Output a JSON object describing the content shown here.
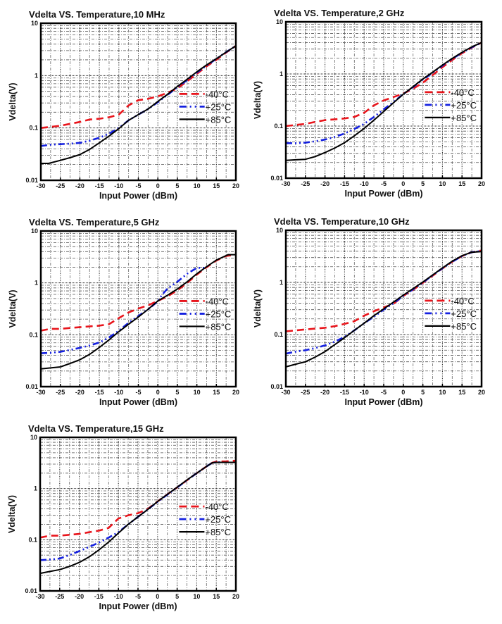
{
  "chart_data": [
    {
      "type": "line",
      "title": "Vdelta VS. Temperature,10 MHz",
      "xlabel": "Input Power (dBm)",
      "ylabel": "Vdelta(V)",
      "xlim": [
        -30,
        20
      ],
      "ylim": [
        0.01,
        10
      ],
      "yscale": "log",
      "x_ticks": [
        "-30",
        "-25",
        "-20",
        "-15",
        "-10",
        "-5",
        "0",
        "5",
        "10",
        "15",
        "20"
      ],
      "y_ticks": [
        "0.01",
        "0.1",
        "1",
        "10"
      ],
      "grid": true,
      "legend_position": "center-right",
      "series": [
        {
          "name": "-40°C",
          "color": "#e8141b",
          "style": "dashed",
          "x": [
            -30,
            -27.5,
            -25,
            -22.5,
            -20,
            -17.5,
            -15,
            -12.5,
            -10,
            -7.5,
            -5,
            -2.5,
            0,
            2.5,
            5,
            7.5,
            10,
            12.5,
            15,
            17.5,
            20
          ],
          "y": [
            0.1,
            0.105,
            0.11,
            0.12,
            0.13,
            0.145,
            0.15,
            0.16,
            0.18,
            0.27,
            0.34,
            0.36,
            0.4,
            0.47,
            0.57,
            0.78,
            1.08,
            1.5,
            2.0,
            2.75,
            3.7
          ]
        },
        {
          "name": "+25°C",
          "color": "#1420e0",
          "style": "dashdot",
          "x": [
            -30,
            -27.5,
            -25,
            -22.5,
            -20,
            -17.5,
            -15,
            -12.5,
            -10,
            -7.5,
            -5,
            -2.5,
            0,
            2.5,
            5,
            7.5,
            10,
            12.5,
            15,
            17.5,
            20
          ],
          "y": [
            0.045,
            0.048,
            0.049,
            0.05,
            0.052,
            0.057,
            0.065,
            0.078,
            0.1,
            0.14,
            0.18,
            0.23,
            0.31,
            0.43,
            0.6,
            0.82,
            1.15,
            1.55,
            2.1,
            2.8,
            3.7
          ]
        },
        {
          "name": "+85°C",
          "color": "#000000",
          "style": "solid",
          "x": [
            -30,
            -28,
            -25,
            -22.5,
            -20,
            -17.5,
            -15,
            -12.5,
            -10,
            -7.5,
            -5,
            -2.5,
            0,
            2.5,
            5,
            7.5,
            10,
            12.5,
            15,
            17.5,
            20
          ],
          "y": [
            0.021,
            0.021,
            0.024,
            0.027,
            0.031,
            0.039,
            0.052,
            0.07,
            0.097,
            0.14,
            0.18,
            0.23,
            0.32,
            0.44,
            0.62,
            0.85,
            1.18,
            1.6,
            2.1,
            2.8,
            3.7
          ]
        }
      ]
    },
    {
      "type": "line",
      "title": "Vdelta VS. Temperature,2 GHz",
      "xlabel": "Input Power (dBm)",
      "ylabel": "Vdelta(V)",
      "xlim": [
        -30,
        20
      ],
      "ylim": [
        0.01,
        10
      ],
      "yscale": "log",
      "x_ticks": [
        "-30",
        "-25",
        "-20",
        "-15",
        "-10",
        "-5",
        "0",
        "5",
        "10",
        "15",
        "20"
      ],
      "y_ticks": [
        "0.01",
        "0.1",
        "1",
        "10"
      ],
      "grid": true,
      "legend_position": "center-right",
      "series": [
        {
          "name": "-40°C",
          "color": "#e8141b",
          "style": "dashed",
          "x": [
            -30,
            -27.5,
            -25,
            -22.5,
            -20,
            -17.5,
            -15,
            -12.5,
            -10,
            -7.5,
            -5,
            -2.5,
            0,
            2.5,
            5,
            7.5,
            10,
            12.5,
            15,
            17.5,
            20
          ],
          "y": [
            0.1,
            0.105,
            0.11,
            0.12,
            0.13,
            0.135,
            0.14,
            0.15,
            0.18,
            0.25,
            0.31,
            0.36,
            0.42,
            0.52,
            0.68,
            0.95,
            1.35,
            1.85,
            2.5,
            3.2,
            4.0
          ]
        },
        {
          "name": "+25°C",
          "color": "#1420e0",
          "style": "dashdot",
          "x": [
            -30,
            -27.5,
            -25,
            -22.5,
            -20,
            -17.5,
            -15,
            -12.5,
            -10,
            -7.5,
            -5,
            -2.5,
            0,
            2.5,
            5,
            7.5,
            10,
            12.5,
            15,
            17.5,
            20
          ],
          "y": [
            0.047,
            0.047,
            0.048,
            0.051,
            0.055,
            0.062,
            0.072,
            0.088,
            0.11,
            0.15,
            0.21,
            0.29,
            0.41,
            0.56,
            0.78,
            1.05,
            1.45,
            1.95,
            2.55,
            3.25,
            4.0
          ]
        },
        {
          "name": "+85°C",
          "color": "#000000",
          "style": "solid",
          "x": [
            -30,
            -27.5,
            -25,
            -22.5,
            -20,
            -17.5,
            -15,
            -12.5,
            -10,
            -7.5,
            -5,
            -2.5,
            0,
            2.5,
            5,
            7.5,
            10,
            12.5,
            15,
            17.5,
            20
          ],
          "y": [
            0.022,
            0.0225,
            0.023,
            0.026,
            0.031,
            0.038,
            0.048,
            0.065,
            0.09,
            0.13,
            0.19,
            0.28,
            0.41,
            0.57,
            0.8,
            1.08,
            1.48,
            1.98,
            2.6,
            3.3,
            4.0
          ]
        }
      ]
    },
    {
      "type": "line",
      "title": "Vdelta VS. Temperature,5 GHz",
      "xlabel": "Input Power (dBm)",
      "ylabel": "Vdelta(V)",
      "xlim": [
        -30,
        20
      ],
      "ylim": [
        0.01,
        10
      ],
      "yscale": "log",
      "x_ticks": [
        "-30",
        "-25",
        "-20",
        "-15",
        "-10",
        "-5",
        "0",
        "5",
        "10",
        "15",
        "20"
      ],
      "y_ticks": [
        "0.01",
        "0.1",
        "1",
        "10"
      ],
      "grid": true,
      "legend_position": "center-right",
      "series": [
        {
          "name": "-40°C",
          "color": "#e8141b",
          "style": "dashed",
          "x": [
            -30,
            -27.5,
            -25,
            -22.5,
            -20,
            -17.5,
            -15,
            -12.5,
            -10,
            -7.5,
            -5,
            -2.5,
            0,
            2.5,
            5,
            7.5,
            10,
            12.5,
            15,
            17.5,
            20
          ],
          "y": [
            0.12,
            0.13,
            0.13,
            0.135,
            0.14,
            0.145,
            0.15,
            0.16,
            0.21,
            0.27,
            0.32,
            0.37,
            0.45,
            0.55,
            0.72,
            1.0,
            1.45,
            2.0,
            2.7,
            3.3,
            3.5
          ]
        },
        {
          "name": "+25°C",
          "color": "#1420e0",
          "style": "dashdot",
          "x": [
            -30,
            -27.5,
            -25,
            -22.5,
            -20,
            -17.5,
            -15,
            -12.5,
            -10,
            -7.5,
            -5,
            -2.5,
            0,
            1,
            2.5,
            5,
            7.5,
            10,
            12
          ],
          "y": [
            0.044,
            0.045,
            0.047,
            0.051,
            0.056,
            0.062,
            0.071,
            0.089,
            0.12,
            0.17,
            0.23,
            0.31,
            0.44,
            0.58,
            0.78,
            1.05,
            1.5,
            1.95,
            1.95
          ]
        },
        {
          "name": "+85°C",
          "color": "#000000",
          "style": "solid",
          "x": [
            -30,
            -27.5,
            -25,
            -22.5,
            -20,
            -17.5,
            -15,
            -12.5,
            -10,
            -7.5,
            -5,
            -2.5,
            0,
            2.5,
            5,
            7.5,
            10,
            12.5,
            15,
            18,
            20
          ],
          "y": [
            0.022,
            0.023,
            0.024,
            0.028,
            0.033,
            0.042,
            0.057,
            0.08,
            0.115,
            0.16,
            0.22,
            0.31,
            0.45,
            0.58,
            0.76,
            1.05,
            1.5,
            2.05,
            2.75,
            3.5,
            3.5
          ]
        }
      ]
    },
    {
      "type": "line",
      "title": "Vdelta VS. Temperature,10 GHz",
      "xlabel": "Input Power (dBm)",
      "ylabel": "Vdelta(V)",
      "xlim": [
        -30,
        20
      ],
      "ylim": [
        0.01,
        10
      ],
      "yscale": "log",
      "x_ticks": [
        "-30",
        "-25",
        "-20",
        "-15",
        "-10",
        "-5",
        "0",
        "5",
        "10",
        "15",
        "20"
      ],
      "y_ticks": [
        "0.01",
        "0.1",
        "1",
        "10"
      ],
      "grid": true,
      "legend_position": "center-right",
      "series": [
        {
          "name": "-40°C",
          "color": "#e8141b",
          "style": "dashed",
          "x": [
            -30,
            -27.5,
            -25,
            -22.5,
            -20,
            -17.5,
            -15,
            -12.5,
            -10,
            -7.5,
            -5,
            -2.5,
            0,
            2.5,
            5,
            7.5,
            10,
            12.5,
            15,
            17.5,
            20
          ],
          "y": [
            0.115,
            0.12,
            0.125,
            0.13,
            0.135,
            0.145,
            0.16,
            0.18,
            0.23,
            0.28,
            0.33,
            0.39,
            0.55,
            0.72,
            0.98,
            1.35,
            1.85,
            2.5,
            3.2,
            3.8,
            4.1
          ]
        },
        {
          "name": "+25°C",
          "color": "#1420e0",
          "style": "dashdot",
          "x": [
            -30,
            -27.5,
            -25,
            -22.5,
            -20,
            -17.5,
            -15,
            -12.5,
            -10,
            -7.5,
            -5,
            -2.5,
            0,
            2.5,
            5,
            7.5,
            10,
            12.5,
            15,
            17.5,
            20
          ],
          "y": [
            0.043,
            0.047,
            0.05,
            0.055,
            0.062,
            0.073,
            0.09,
            0.12,
            0.165,
            0.22,
            0.3,
            0.4,
            0.55,
            0.74,
            1.0,
            1.37,
            1.87,
            2.5,
            3.2,
            3.8,
            4.0
          ]
        },
        {
          "name": "+85°C",
          "color": "#000000",
          "style": "solid",
          "x": [
            -30,
            -27.5,
            -25,
            -22.5,
            -20,
            -17.5,
            -15,
            -12.5,
            -10,
            -7.5,
            -5,
            -2.5,
            0,
            2.5,
            5,
            7.5,
            10,
            12.5,
            15,
            17.5,
            20
          ],
          "y": [
            0.024,
            0.027,
            0.03,
            0.037,
            0.047,
            0.064,
            0.087,
            0.12,
            0.165,
            0.23,
            0.31,
            0.42,
            0.57,
            0.76,
            1.02,
            1.39,
            1.9,
            2.55,
            3.25,
            3.8,
            3.9
          ]
        }
      ]
    },
    {
      "type": "line",
      "title": "Vdelta VS. Temperature,15 GHz",
      "xlabel": "Input Power (dBm)",
      "ylabel": "Vdelta(V)",
      "xlim": [
        -30,
        20
      ],
      "ylim": [
        0.01,
        10
      ],
      "yscale": "log",
      "x_ticks": [
        "-30",
        "-25",
        "-20",
        "-15",
        "-10",
        "-5",
        "0",
        "5",
        "10",
        "15",
        "20"
      ],
      "y_ticks": [
        "0.01",
        "0.1",
        "1",
        "10"
      ],
      "grid": true,
      "legend_position": "center-right",
      "series": [
        {
          "name": "-40°C",
          "color": "#e8141b",
          "style": "dashed",
          "x": [
            -30,
            -27.5,
            -25,
            -22.5,
            -20,
            -17.5,
            -15,
            -12.5,
            -10,
            -7.5,
            -5,
            -2.5,
            0,
            2.5,
            5,
            7.5,
            10,
            12.5,
            14,
            15,
            17.5,
            20
          ],
          "y": [
            0.11,
            0.12,
            0.12,
            0.125,
            0.13,
            0.14,
            0.15,
            0.17,
            0.26,
            0.3,
            0.33,
            0.4,
            0.56,
            0.77,
            1.05,
            1.45,
            2.0,
            2.7,
            3.2,
            3.35,
            3.4,
            3.5
          ]
        },
        {
          "name": "+25°C",
          "color": "#1420e0",
          "style": "dashdot",
          "x": [
            -30,
            -27.5,
            -25,
            -22.5,
            -20,
            -17.5,
            -15,
            -12.5,
            -10,
            -7.5,
            -5,
            -2.5,
            0,
            2.5,
            5,
            7.5,
            10,
            12.5,
            14,
            16.5
          ],
          "y": [
            0.04,
            0.041,
            0.043,
            0.05,
            0.06,
            0.072,
            0.088,
            0.11,
            0.14,
            0.2,
            0.28,
            0.39,
            0.55,
            0.76,
            1.05,
            1.45,
            2.0,
            2.7,
            3.2,
            3.3
          ]
        },
        {
          "name": "+85°C",
          "color": "#000000",
          "style": "solid",
          "x": [
            -30,
            -27.5,
            -25,
            -22.5,
            -20,
            -17.5,
            -15,
            -12.5,
            -10,
            -7.5,
            -5,
            -2.5,
            0,
            2.5,
            5,
            7.5,
            10,
            12.5,
            14,
            15,
            17.5,
            20
          ],
          "y": [
            0.022,
            0.024,
            0.026,
            0.03,
            0.036,
            0.046,
            0.063,
            0.09,
            0.135,
            0.2,
            0.28,
            0.39,
            0.56,
            0.77,
            1.06,
            1.47,
            2.0,
            2.7,
            3.2,
            3.25,
            3.25,
            3.25
          ]
        }
      ]
    }
  ]
}
